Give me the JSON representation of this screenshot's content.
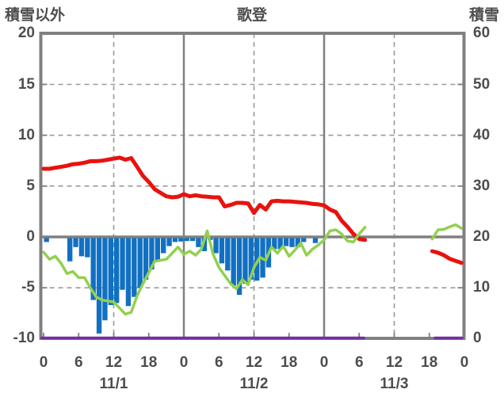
{
  "header": {
    "left_axis_title": "積雪以外",
    "station_title": "歌登",
    "right_axis_title": "積雪"
  },
  "colors": {
    "axis_gray": "#808080",
    "grid_dash_gray": "#9a9a9a",
    "label_gray": "#4d4d4d",
    "red_line": "#e8120e",
    "green_line": "#92d050",
    "blue_bar": "#1170c2",
    "purple_line": "#7030a0",
    "background": "#ffffff"
  },
  "chart_data": {
    "type": "line",
    "title": "歌登",
    "x_axis": {
      "unit": "hour",
      "range_hours": [
        0,
        72
      ],
      "tick_hours": [
        0,
        6,
        12,
        18,
        24,
        30,
        36,
        42,
        48,
        54,
        60,
        66,
        72
      ],
      "tick_labels": [
        "0",
        "6",
        "12",
        "18",
        "0",
        "6",
        "12",
        "18",
        "0",
        "6",
        "12",
        "18",
        "0"
      ],
      "date_labels": [
        {
          "label": "11/1",
          "hour": 12
        },
        {
          "label": "11/2",
          "hour": 36
        },
        {
          "label": "11/3",
          "hour": 60
        }
      ]
    },
    "y_axis_left": {
      "title": "積雪以外",
      "min": -10,
      "max": 20,
      "tick_values": [
        20,
        15,
        10,
        5,
        0,
        -5,
        -10
      ],
      "tick_labels": [
        "20",
        "15",
        "10",
        "5",
        "0",
        "-5",
        "-10"
      ]
    },
    "y_axis_right": {
      "title": "積雪",
      "min": 0,
      "max": 60,
      "tick_values": [
        60,
        50,
        40,
        30,
        20,
        10,
        0
      ],
      "tick_labels": [
        "60",
        "50",
        "40",
        "30",
        "20",
        "10",
        "0"
      ]
    },
    "gridlines": {
      "horizontal_dashed_left_values": [
        15,
        10,
        5,
        -5
      ],
      "horizontal_solid_left_values": [
        0
      ],
      "vertical_dashed_hours": [
        12,
        36,
        60
      ],
      "vertical_solid_hours": [
        24,
        48
      ]
    },
    "bars": {
      "name": "blue-bars",
      "axis": "left",
      "points": [
        [
          0,
          -0.5
        ],
        [
          4,
          -2.4
        ],
        [
          5,
          -1.0
        ],
        [
          6,
          -1.9
        ],
        [
          7,
          -2.0
        ],
        [
          8,
          -6.2
        ],
        [
          9,
          -9.5
        ],
        [
          10,
          -8.2
        ],
        [
          11,
          -6.7
        ],
        [
          12,
          -6.5
        ],
        [
          13,
          -5.2
        ],
        [
          14,
          -6.8
        ],
        [
          15,
          -5.9
        ],
        [
          16,
          -5.0
        ],
        [
          17,
          -4.2
        ],
        [
          18,
          -3.2
        ],
        [
          19,
          -2.3
        ],
        [
          20,
          -1.6
        ],
        [
          21,
          -0.9
        ],
        [
          22,
          -0.5
        ],
        [
          23,
          -0.45
        ],
        [
          24,
          -0.4
        ],
        [
          25,
          -0.4
        ],
        [
          26,
          -1.0
        ],
        [
          27,
          -1.4
        ],
        [
          28,
          -0.3
        ],
        [
          29,
          -1.6
        ],
        [
          30,
          -2.6
        ],
        [
          31,
          -3.3
        ],
        [
          32,
          -4.8
        ],
        [
          33,
          -5.7
        ],
        [
          34,
          -4.6
        ],
        [
          35,
          -4.2
        ],
        [
          36,
          -4.3
        ],
        [
          37,
          -4.0
        ],
        [
          38,
          -3.0
        ],
        [
          39,
          -1.2
        ],
        [
          40,
          -1.2
        ],
        [
          41,
          -0.9
        ],
        [
          42,
          -1.0
        ],
        [
          43,
          -1.0
        ],
        [
          44,
          -0.5
        ],
        [
          46,
          -0.6
        ]
      ]
    },
    "series": [
      {
        "name": "red-line",
        "axis": "left",
        "width": 5,
        "segments": [
          [
            [
              0,
              6.7
            ],
            [
              1,
              6.7
            ],
            [
              2,
              6.8
            ],
            [
              3,
              6.9
            ],
            [
              4,
              7.0
            ],
            [
              5,
              7.15
            ],
            [
              6,
              7.2
            ],
            [
              7,
              7.3
            ],
            [
              8,
              7.45
            ],
            [
              9,
              7.45
            ],
            [
              10,
              7.5
            ],
            [
              11,
              7.6
            ],
            [
              12,
              7.7
            ],
            [
              13,
              7.8
            ],
            [
              14,
              7.6
            ],
            [
              15,
              7.75
            ],
            [
              16,
              6.9
            ],
            [
              17,
              6.0
            ],
            [
              18,
              5.4
            ],
            [
              19,
              4.7
            ],
            [
              20,
              4.35
            ],
            [
              21,
              4.0
            ],
            [
              22,
              3.9
            ],
            [
              23,
              3.95
            ],
            [
              24,
              4.2
            ],
            [
              25,
              4.0
            ],
            [
              26,
              4.1
            ],
            [
              27,
              4.0
            ],
            [
              28,
              3.95
            ],
            [
              29,
              3.9
            ],
            [
              30,
              3.9
            ],
            [
              31,
              3.0
            ],
            [
              32,
              3.15
            ],
            [
              33,
              3.35
            ],
            [
              34,
              3.35
            ],
            [
              35,
              3.3
            ],
            [
              36,
              2.35
            ],
            [
              37,
              3.15
            ],
            [
              38,
              2.7
            ],
            [
              39,
              3.5
            ],
            [
              40,
              3.55
            ],
            [
              41,
              3.5
            ],
            [
              42,
              3.5
            ],
            [
              43,
              3.45
            ],
            [
              44,
              3.4
            ],
            [
              45,
              3.35
            ],
            [
              46,
              3.25
            ],
            [
              47,
              3.2
            ],
            [
              48,
              3.1
            ],
            [
              49,
              2.7
            ],
            [
              50,
              2.45
            ],
            [
              51,
              1.6
            ],
            [
              52,
              1.0
            ],
            [
              53,
              0.3
            ],
            [
              54,
              -0.2
            ],
            [
              55,
              -0.3
            ]
          ],
          [
            [
              66.5,
              -1.4
            ],
            [
              67.5,
              -1.55
            ],
            [
              68.5,
              -1.8
            ],
            [
              69.5,
              -2.15
            ],
            [
              70.5,
              -2.35
            ],
            [
              71.5,
              -2.55
            ]
          ]
        ]
      },
      {
        "name": "green-line",
        "axis": "left",
        "width": 3.5,
        "segments": [
          [
            [
              0,
              -1.5
            ],
            [
              1,
              -2.2
            ],
            [
              2,
              -1.9
            ],
            [
              3,
              -2.6
            ],
            [
              4,
              -3.6
            ],
            [
              5,
              -3.4
            ],
            [
              6,
              -4.0
            ],
            [
              7,
              -4.0
            ],
            [
              8,
              -5.0
            ],
            [
              9,
              -5.9
            ],
            [
              10,
              -6.2
            ],
            [
              11,
              -6.3
            ],
            [
              12,
              -6.4
            ],
            [
              13,
              -7.0
            ],
            [
              14,
              -7.6
            ],
            [
              15,
              -7.4
            ],
            [
              16,
              -5.8
            ],
            [
              17,
              -4.6
            ],
            [
              18,
              -3.5
            ],
            [
              19,
              -2.4
            ],
            [
              20,
              -2.3
            ],
            [
              21,
              -2.2
            ],
            [
              22,
              -1.6
            ],
            [
              23,
              -1.0
            ],
            [
              24,
              -1.7
            ],
            [
              25,
              -1.4
            ],
            [
              26,
              -1.8
            ],
            [
              27,
              -1.2
            ],
            [
              28,
              0.6
            ],
            [
              29,
              -1.7
            ],
            [
              30,
              -3.0
            ],
            [
              31,
              -3.8
            ],
            [
              32,
              -4.6
            ],
            [
              33,
              -5.1
            ],
            [
              34,
              -4.2
            ],
            [
              35,
              -4.7
            ],
            [
              36,
              -3.0
            ],
            [
              37,
              -2.0
            ],
            [
              38,
              -2.3
            ],
            [
              39,
              -1.0
            ],
            [
              40,
              -1.6
            ],
            [
              41,
              -0.9
            ],
            [
              42,
              -1.9
            ],
            [
              43,
              -1.3
            ],
            [
              44,
              -0.6
            ],
            [
              45,
              -1.8
            ],
            [
              46,
              -1.2
            ],
            [
              47,
              -0.8
            ],
            [
              48,
              -0.3
            ],
            [
              49,
              0.6
            ],
            [
              50,
              0.7
            ],
            [
              51,
              0.3
            ],
            [
              52,
              -0.4
            ],
            [
              53,
              -0.5
            ],
            [
              54,
              0.3
            ],
            [
              55,
              0.95
            ]
          ],
          [
            [
              66.5,
              -0.2
            ],
            [
              67.5,
              0.7
            ],
            [
              68.5,
              0.75
            ],
            [
              69.5,
              1.0
            ],
            [
              70.5,
              1.2
            ],
            [
              71.5,
              0.85
            ]
          ]
        ]
      },
      {
        "name": "purple-line",
        "axis": "right",
        "width": 3.5,
        "segments": [
          [
            [
              -0.3,
              0
            ],
            [
              54.8,
              0
            ]
          ],
          [
            [
              67,
              0
            ],
            [
              71.6,
              0
            ]
          ]
        ]
      }
    ]
  }
}
